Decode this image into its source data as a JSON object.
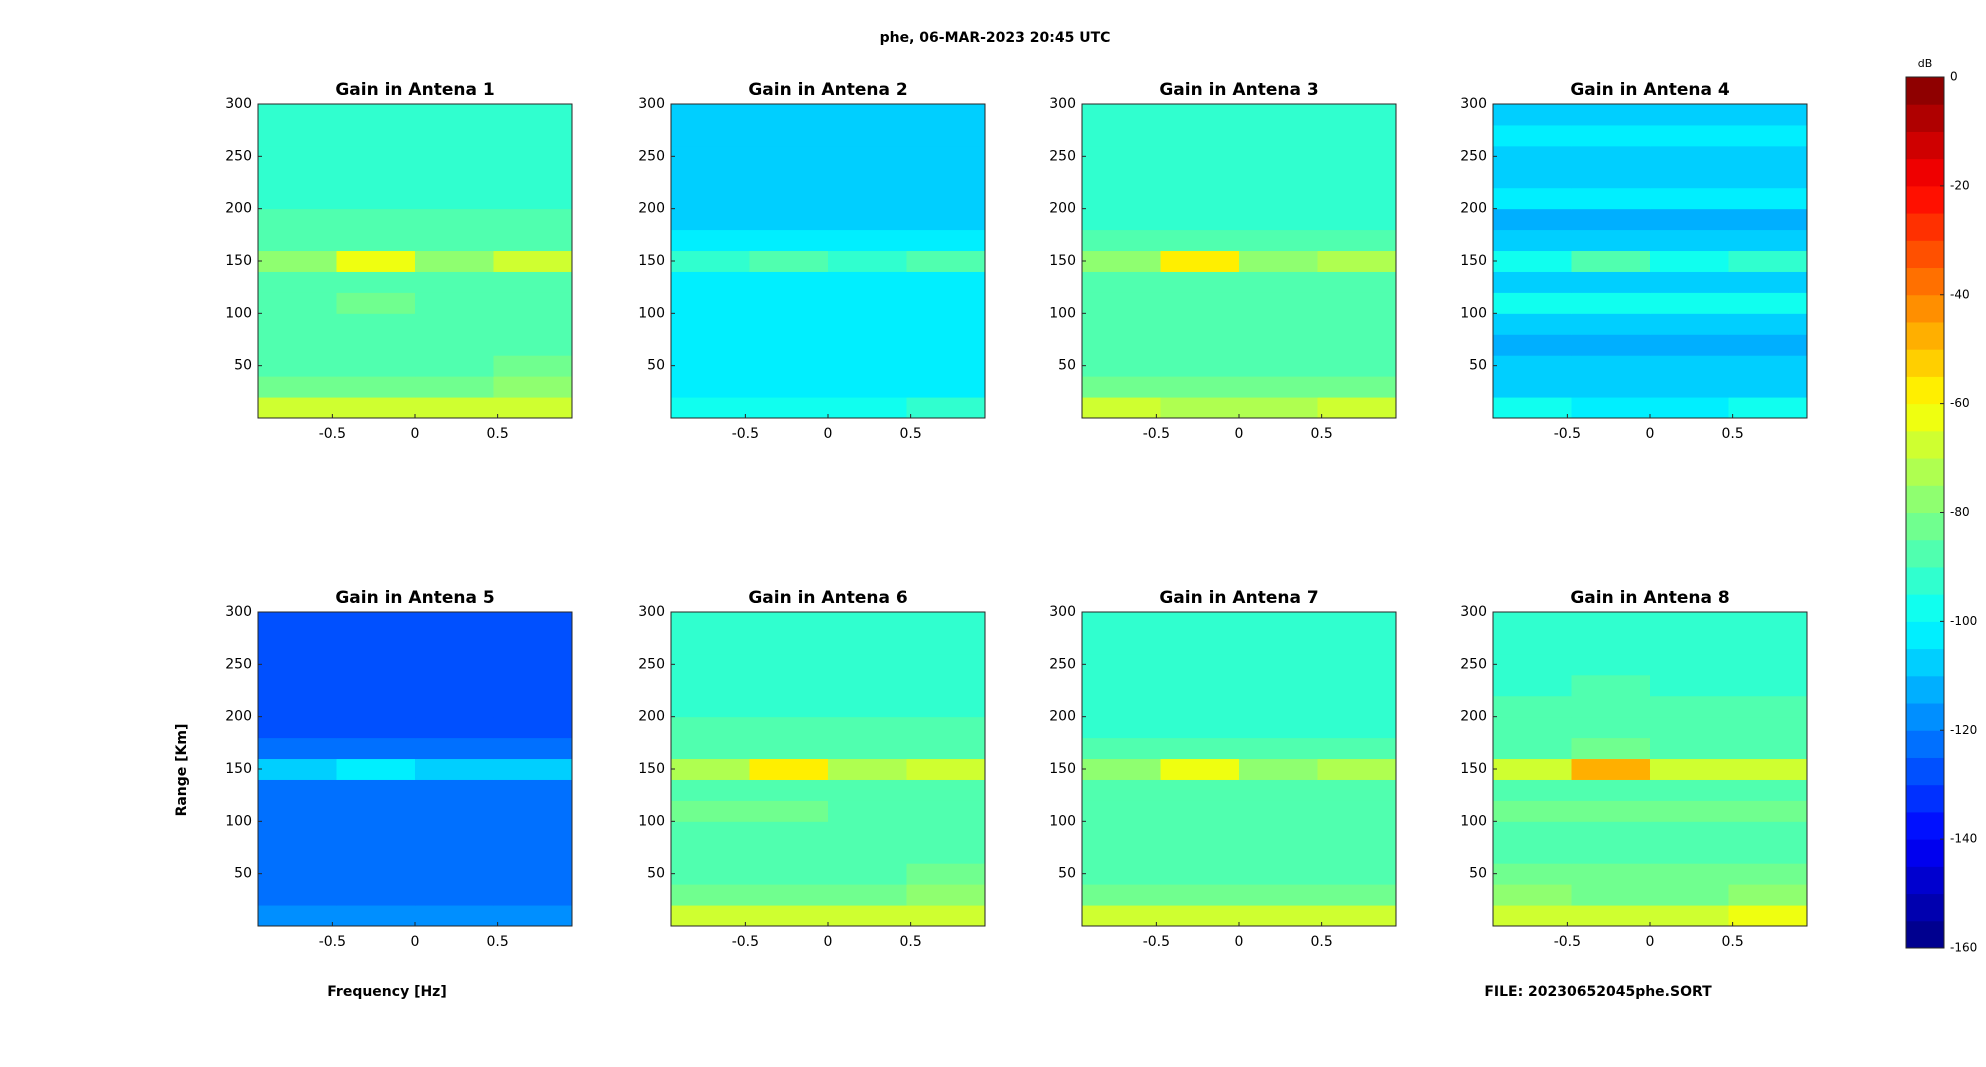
{
  "title": "phe, 06-MAR-2023 20:45 UTC",
  "ylabel": "Range [Km]",
  "xlabel": "Frequency [Hz]",
  "footer": "FILE: 20230652045phe.SORT",
  "colorbar": {
    "label": "dB",
    "colormap": "jet",
    "steps": 32,
    "clim": [
      -160,
      0
    ],
    "ticks": [
      0,
      -20,
      -40,
      -60,
      -80,
      -100,
      -120,
      -140,
      -160
    ]
  },
  "chart_data": [
    {
      "type": "heatmap",
      "title": "Gain in Antena 1",
      "xlim": [
        -0.95,
        0.95
      ],
      "ylim": [
        0,
        300
      ],
      "xticks": [
        -0.5,
        0,
        0.5
      ],
      "yticks": [
        50,
        100,
        150,
        200,
        250,
        300
      ],
      "xbins": [
        -0.95,
        -0.475,
        0,
        0.475,
        0.95
      ],
      "ybins": [
        0,
        20,
        40,
        60,
        80,
        100,
        120,
        140,
        160,
        180,
        200,
        220,
        240,
        260,
        280,
        300
      ],
      "values": [
        [
          -68,
          -70,
          -70,
          -66
        ],
        [
          -82,
          -84,
          -84,
          -80
        ],
        [
          -86,
          -86,
          -86,
          -85
        ],
        [
          -88,
          -88,
          -88,
          -88
        ],
        [
          -88,
          -87,
          -88,
          -88
        ],
        [
          -86,
          -85,
          -86,
          -86
        ],
        [
          -88,
          -88,
          -88,
          -88
        ],
        [
          -76,
          -62,
          -76,
          -70
        ],
        [
          -88,
          -86,
          -88,
          -88
        ],
        [
          -90,
          -90,
          -90,
          -90
        ],
        [
          -91,
          -91,
          -91,
          -91
        ],
        [
          -92,
          -91,
          -92,
          -92
        ],
        [
          -92,
          -92,
          -92,
          -93
        ],
        [
          -93,
          -92,
          -93,
          -93
        ],
        [
          -93,
          -93,
          -93,
          -93
        ]
      ]
    },
    {
      "type": "heatmap",
      "title": "Gain in Antena 2",
      "xlim": [
        -0.95,
        0.95
      ],
      "ylim": [
        0,
        300
      ],
      "xticks": [
        -0.5,
        0,
        0.5
      ],
      "yticks": [
        50,
        100,
        150,
        200,
        250,
        300
      ],
      "xbins": [
        -0.95,
        -0.475,
        0,
        0.475,
        0.95
      ],
      "ybins": [
        0,
        20,
        40,
        60,
        80,
        100,
        120,
        140,
        160,
        180,
        200,
        220,
        240,
        260,
        280,
        300
      ],
      "values": [
        [
          -96,
          -98,
          -98,
          -95
        ],
        [
          -102,
          -103,
          -103,
          -102
        ],
        [
          -104,
          -104,
          -104,
          -104
        ],
        [
          -105,
          -105,
          -105,
          -105
        ],
        [
          -105,
          -105,
          -105,
          -105
        ],
        [
          -104,
          -104,
          -104,
          -104
        ],
        [
          -105,
          -105,
          -105,
          -105
        ],
        [
          -92,
          -86,
          -94,
          -90
        ],
        [
          -104,
          -104,
          -104,
          -104
        ],
        [
          -106,
          -106,
          -106,
          -106
        ],
        [
          -107,
          -107,
          -107,
          -107
        ],
        [
          -108,
          -108,
          -108,
          -108
        ],
        [
          -107,
          -107,
          -107,
          -107
        ],
        [
          -108,
          -108,
          -108,
          -108
        ],
        [
          -107,
          -107,
          -107,
          -107
        ]
      ]
    },
    {
      "type": "heatmap",
      "title": "Gain in Antena 3",
      "xlim": [
        -0.95,
        0.95
      ],
      "ylim": [
        0,
        300
      ],
      "xticks": [
        -0.5,
        0,
        0.5
      ],
      "yticks": [
        50,
        100,
        150,
        200,
        250,
        300
      ],
      "xbins": [
        -0.95,
        -0.475,
        0,
        0.475,
        0.95
      ],
      "ybins": [
        0,
        20,
        40,
        60,
        80,
        100,
        120,
        140,
        160,
        180,
        200,
        220,
        240,
        260,
        280,
        300
      ],
      "values": [
        [
          -68,
          -72,
          -72,
          -68
        ],
        [
          -84,
          -85,
          -85,
          -82
        ],
        [
          -87,
          -87,
          -87,
          -87
        ],
        [
          -89,
          -89,
          -89,
          -89
        ],
        [
          -89,
          -88,
          -89,
          -89
        ],
        [
          -87,
          -86,
          -87,
          -87
        ],
        [
          -89,
          -89,
          -89,
          -89
        ],
        [
          -76,
          -60,
          -78,
          -72
        ],
        [
          -89,
          -88,
          -89,
          -89
        ],
        [
          -91,
          -91,
          -91,
          -91
        ],
        [
          -92,
          -92,
          -92,
          -92
        ],
        [
          -93,
          -92,
          -93,
          -93
        ],
        [
          -93,
          -93,
          -93,
          -94
        ],
        [
          -94,
          -93,
          -94,
          -94
        ],
        [
          -94,
          -94,
          -94,
          -94
        ]
      ]
    },
    {
      "type": "heatmap",
      "title": "Gain in Antena 4",
      "xlim": [
        -0.95,
        0.95
      ],
      "ylim": [
        0,
        300
      ],
      "xticks": [
        -0.5,
        0,
        0.5
      ],
      "yticks": [
        50,
        100,
        150,
        200,
        250,
        300
      ],
      "xbins": [
        -0.95,
        -0.475,
        0,
        0.475,
        0.95
      ],
      "ybins": [
        0,
        20,
        40,
        60,
        80,
        100,
        120,
        140,
        160,
        180,
        200,
        220,
        240,
        260,
        280,
        300
      ],
      "values": [
        [
          -100,
          -101,
          -101,
          -100
        ],
        [
          -106,
          -106,
          -106,
          -106
        ],
        [
          -110,
          -110,
          -110,
          -110
        ],
        [
          -112,
          -112,
          -112,
          -112
        ],
        [
          -110,
          -110,
          -110,
          -110
        ],
        [
          -100,
          -100,
          -100,
          -99
        ],
        [
          -110,
          -110,
          -110,
          -110
        ],
        [
          -96,
          -90,
          -96,
          -94
        ],
        [
          -110,
          -110,
          -110,
          -110
        ],
        [
          -112,
          -112,
          -112,
          -112
        ],
        [
          -104,
          -104,
          -104,
          -104
        ],
        [
          -110,
          -110,
          -110,
          -110
        ],
        [
          -106,
          -106,
          -106,
          -106
        ],
        [
          -102,
          -102,
          -102,
          -102
        ],
        [
          -110,
          -110,
          -110,
          -110
        ]
      ]
    },
    {
      "type": "heatmap",
      "title": "Gain in Antena 5",
      "xlim": [
        -0.95,
        0.95
      ],
      "ylim": [
        0,
        300
      ],
      "xticks": [
        -0.5,
        0,
        0.5
      ],
      "yticks": [
        50,
        100,
        150,
        200,
        250,
        300
      ],
      "xbins": [
        -0.95,
        -0.475,
        0,
        0.475,
        0.95
      ],
      "ybins": [
        0,
        20,
        40,
        60,
        80,
        100,
        120,
        140,
        160,
        180,
        200,
        220,
        240,
        260,
        280,
        300
      ],
      "values": [
        [
          -118,
          -119,
          -119,
          -118
        ],
        [
          -122,
          -122,
          -122,
          -122
        ],
        [
          -124,
          -124,
          -124,
          -124
        ],
        [
          -125,
          -125,
          -125,
          -125
        ],
        [
          -125,
          -125,
          -125,
          -125
        ],
        [
          -124,
          -124,
          -124,
          -124
        ],
        [
          -125,
          -125,
          -125,
          -125
        ],
        [
          -110,
          -105,
          -110,
          -106
        ],
        [
          -125,
          -125,
          -125,
          -125
        ],
        [
          -126,
          -126,
          -126,
          -126
        ],
        [
          -126,
          -126,
          -126,
          -126
        ],
        [
          -127,
          -127,
          -127,
          -127
        ],
        [
          -127,
          -127,
          -127,
          -127
        ],
        [
          -127,
          -127,
          -127,
          -127
        ],
        [
          -126,
          -126,
          -126,
          -126
        ]
      ]
    },
    {
      "type": "heatmap",
      "title": "Gain in Antena 6",
      "xlim": [
        -0.95,
        0.95
      ],
      "ylim": [
        0,
        300
      ],
      "xticks": [
        -0.5,
        0,
        0.5
      ],
      "yticks": [
        50,
        100,
        150,
        200,
        250,
        300
      ],
      "xbins": [
        -0.95,
        -0.475,
        0,
        0.475,
        0.95
      ],
      "ybins": [
        0,
        20,
        40,
        60,
        80,
        100,
        120,
        140,
        160,
        180,
        200,
        220,
        240,
        260,
        280,
        300
      ],
      "values": [
        [
          -67,
          -69,
          -70,
          -66
        ],
        [
          -82,
          -83,
          -83,
          -80
        ],
        [
          -86,
          -86,
          -86,
          -85
        ],
        [
          -88,
          -88,
          -88,
          -88
        ],
        [
          -88,
          -87,
          -88,
          -88
        ],
        [
          -85,
          -85,
          -86,
          -86
        ],
        [
          -88,
          -88,
          -88,
          -88
        ],
        [
          -72,
          -58,
          -72,
          -68
        ],
        [
          -88,
          -86,
          -88,
          -88
        ],
        [
          -90,
          -90,
          -90,
          -90
        ],
        [
          -91,
          -91,
          -91,
          -91
        ],
        [
          -92,
          -91,
          -92,
          -92
        ],
        [
          -92,
          -92,
          -92,
          -93
        ],
        [
          -93,
          -92,
          -93,
          -93
        ],
        [
          -93,
          -93,
          -93,
          -93
        ]
      ]
    },
    {
      "type": "heatmap",
      "title": "Gain in Antena 7",
      "xlim": [
        -0.95,
        0.95
      ],
      "ylim": [
        0,
        300
      ],
      "xticks": [
        -0.5,
        0,
        0.5
      ],
      "yticks": [
        50,
        100,
        150,
        200,
        250,
        300
      ],
      "xbins": [
        -0.95,
        -0.475,
        0,
        0.475,
        0.95
      ],
      "ybins": [
        0,
        20,
        40,
        60,
        80,
        100,
        120,
        140,
        160,
        180,
        200,
        220,
        240,
        260,
        280,
        300
      ],
      "values": [
        [
          -68,
          -70,
          -70,
          -67
        ],
        [
          -84,
          -85,
          -85,
          -82
        ],
        [
          -87,
          -87,
          -87,
          -87
        ],
        [
          -89,
          -89,
          -89,
          -89
        ],
        [
          -89,
          -88,
          -89,
          -89
        ],
        [
          -86,
          -86,
          -87,
          -87
        ],
        [
          -89,
          -89,
          -89,
          -89
        ],
        [
          -76,
          -64,
          -76,
          -72
        ],
        [
          -89,
          -88,
          -89,
          -89
        ],
        [
          -91,
          -91,
          -91,
          -91
        ],
        [
          -92,
          -92,
          -92,
          -92
        ],
        [
          -93,
          -92,
          -93,
          -93
        ],
        [
          -93,
          -93,
          -93,
          -93
        ],
        [
          -94,
          -93,
          -94,
          -94
        ],
        [
          -94,
          -94,
          -94,
          -94
        ]
      ]
    },
    {
      "type": "heatmap",
      "title": "Gain in Antena 8",
      "xlim": [
        -0.95,
        0.95
      ],
      "ylim": [
        0,
        300
      ],
      "xticks": [
        -0.5,
        0,
        0.5
      ],
      "yticks": [
        50,
        100,
        150,
        200,
        250,
        300
      ],
      "xbins": [
        -0.95,
        -0.475,
        0,
        0.475,
        0.95
      ],
      "ybins": [
        0,
        20,
        40,
        60,
        80,
        100,
        120,
        140,
        160,
        180,
        200,
        220,
        240,
        260,
        280,
        300
      ],
      "values": [
        [
          -66,
          -69,
          -70,
          -65
        ],
        [
          -80,
          -82,
          -82,
          -79
        ],
        [
          -85,
          -85,
          -85,
          -84
        ],
        [
          -87,
          -87,
          -87,
          -87
        ],
        [
          -87,
          -86,
          -87,
          -87
        ],
        [
          -84,
          -84,
          -85,
          -85
        ],
        [
          -87,
          -87,
          -87,
          -87
        ],
        [
          -70,
          -48,
          -70,
          -66
        ],
        [
          -87,
          -85,
          -87,
          -87
        ],
        [
          -89,
          -89,
          -89,
          -89
        ],
        [
          -90,
          -90,
          -90,
          -90
        ],
        [
          -91,
          -90,
          -91,
          -91
        ],
        [
          -91,
          -91,
          -91,
          -92
        ],
        [
          -92,
          -91,
          -92,
          -92
        ],
        [
          -92,
          -92,
          -92,
          -92
        ]
      ]
    }
  ]
}
